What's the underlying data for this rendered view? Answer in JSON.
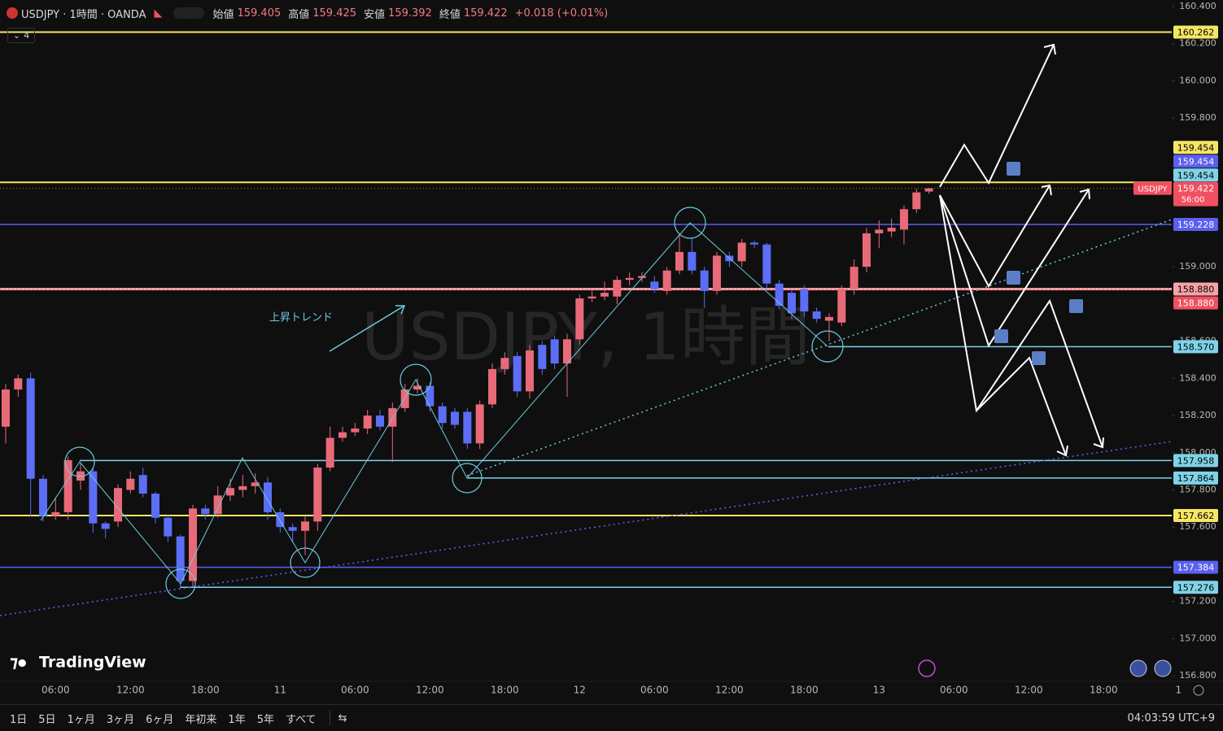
{
  "header": {
    "symbol_line": "USDJPY · 1時間 · OANDA",
    "indicator_count": "4",
    "ohlc": [
      {
        "label": "始値",
        "value": 159.405
      },
      {
        "label": "高値",
        "value": 159.425
      },
      {
        "label": "安値",
        "value": 159.392
      },
      {
        "label": "終値",
        "value": 159.422
      }
    ],
    "change": "+0.018 (+0.01%)"
  },
  "chart_data": {
    "type": "candlestick",
    "watermark": "USDJPY, 1時間",
    "annotation": "上昇トレンド",
    "brand": "TradingView",
    "up_color": "#e86a78",
    "down_color": "#5c6ef5",
    "categories": [
      null,
      null,
      null,
      null,
      "06:00",
      null,
      null,
      null,
      null,
      null,
      "12:00",
      null,
      null,
      null,
      null,
      null,
      "18:00",
      null,
      null,
      null,
      null,
      null,
      "11",
      null,
      null,
      null,
      null,
      null,
      "06:00",
      null,
      null,
      null,
      null,
      null,
      "12:00",
      null,
      null,
      null,
      null,
      null,
      "18:00",
      null,
      null,
      null,
      null,
      null,
      "12",
      null,
      null,
      null,
      null,
      null,
      "06:00",
      null,
      null,
      null,
      null,
      null,
      "12:00",
      null,
      null,
      null,
      null,
      null,
      "18:00",
      null,
      null,
      null,
      null,
      null,
      "13",
      null,
      null,
      null,
      null,
      null,
      "06:00",
      null,
      null,
      null,
      null,
      null,
      "12:00",
      null,
      null,
      null,
      null,
      null,
      "18:00",
      null,
      null,
      null,
      null,
      null,
      "1"
    ],
    "open": [
      158.14,
      158.34,
      158.4,
      157.86,
      157.66,
      157.68,
      157.85,
      157.9,
      157.62,
      157.63,
      157.8,
      157.88,
      157.78,
      157.65,
      157.55,
      157.31,
      157.7,
      157.67,
      157.77,
      157.8,
      157.82,
      157.84,
      157.68,
      157.6,
      157.58,
      157.63,
      157.92,
      158.08,
      158.11,
      158.13,
      158.2,
      158.14,
      158.24,
      158.34,
      158.36,
      158.25,
      158.22,
      158.22,
      158.05,
      158.26,
      158.45,
      158.52,
      158.33,
      158.58,
      158.61,
      158.48,
      158.61,
      158.83,
      158.84,
      158.84,
      158.93,
      158.94,
      158.92,
      158.87,
      158.98,
      159.08,
      158.98,
      158.87,
      159.06,
      159.03,
      159.13,
      159.12,
      158.91,
      158.86,
      158.88,
      158.76,
      158.71,
      158.7,
      158.88,
      159.0,
      159.18,
      159.19,
      159.2,
      159.31,
      159.405,
      null,
      null,
      null,
      null,
      null,
      null,
      null,
      null,
      null,
      null,
      null,
      null,
      null,
      null,
      null,
      null,
      null,
      null,
      null,
      null
    ],
    "high": [
      158.37,
      158.42,
      158.43,
      157.88,
      157.76,
      157.98,
      157.94,
      157.92,
      157.63,
      157.83,
      157.9,
      157.92,
      157.79,
      157.67,
      157.56,
      157.72,
      157.72,
      157.82,
      157.86,
      157.88,
      157.89,
      157.87,
      157.7,
      157.62,
      157.66,
      157.94,
      158.14,
      158.14,
      158.16,
      158.23,
      158.23,
      158.27,
      158.37,
      158.4,
      158.38,
      158.27,
      158.24,
      158.24,
      158.28,
      158.48,
      158.54,
      158.54,
      158.58,
      158.6,
      158.63,
      158.64,
      158.85,
      158.88,
      158.92,
      158.95,
      158.97,
      158.97,
      158.95,
      159.0,
      159.18,
      159.15,
      159.0,
      159.08,
      159.08,
      159.15,
      159.14,
      159.13,
      158.93,
      158.88,
      158.9,
      158.78,
      158.75,
      158.9,
      159.04,
      159.21,
      159.25,
      159.26,
      159.33,
      159.42,
      159.425,
      null,
      null,
      null,
      null,
      null,
      null,
      null,
      null,
      null,
      null,
      null,
      null,
      null,
      null,
      null,
      null,
      null,
      null,
      null,
      null
    ],
    "low": [
      158.05,
      158.3,
      157.66,
      157.63,
      157.64,
      157.64,
      157.8,
      157.57,
      157.54,
      157.6,
      157.78,
      157.76,
      157.62,
      157.52,
      157.27,
      157.28,
      157.64,
      157.65,
      157.74,
      157.76,
      157.78,
      157.64,
      157.57,
      157.52,
      157.45,
      157.58,
      157.9,
      158.06,
      158.09,
      158.1,
      158.12,
      157.95,
      158.22,
      158.32,
      158.22,
      158.13,
      158.13,
      158.02,
      158.02,
      158.24,
      158.42,
      158.3,
      158.29,
      158.42,
      158.45,
      158.3,
      158.58,
      158.81,
      158.82,
      158.8,
      158.9,
      158.92,
      158.86,
      158.85,
      158.96,
      158.96,
      158.78,
      158.85,
      159.0,
      159.0,
      159.1,
      158.88,
      158.77,
      158.72,
      158.73,
      158.7,
      158.6,
      158.68,
      158.85,
      158.97,
      159.1,
      159.16,
      159.12,
      159.29,
      159.392,
      null,
      null,
      null,
      null,
      null,
      null,
      null,
      null,
      null,
      null,
      null,
      null,
      null,
      null,
      null,
      null,
      null,
      null,
      null,
      null
    ],
    "close": [
      158.34,
      158.4,
      157.86,
      157.66,
      157.68,
      157.96,
      157.9,
      157.62,
      157.59,
      157.81,
      157.86,
      157.78,
      157.65,
      157.55,
      157.31,
      157.7,
      157.67,
      157.77,
      157.81,
      157.82,
      157.84,
      157.68,
      157.6,
      157.58,
      157.63,
      157.92,
      158.08,
      158.11,
      158.13,
      158.2,
      158.14,
      158.24,
      158.34,
      158.36,
      158.25,
      158.16,
      158.15,
      158.05,
      158.26,
      158.45,
      158.51,
      158.33,
      158.55,
      158.45,
      158.48,
      158.61,
      158.83,
      158.84,
      158.86,
      158.93,
      158.94,
      158.95,
      158.88,
      158.98,
      159.08,
      158.98,
      158.87,
      159.06,
      159.03,
      159.13,
      159.12,
      158.91,
      158.79,
      158.75,
      158.76,
      158.72,
      158.73,
      158.88,
      159.0,
      159.18,
      159.2,
      159.21,
      159.31,
      159.4,
      159.422,
      null,
      null,
      null,
      null,
      null,
      null,
      null,
      null,
      null,
      null,
      null,
      null,
      null,
      null,
      null,
      null,
      null,
      null,
      null,
      null
    ],
    "ylim": [
      156.77,
      160.435
    ],
    "yticks": [
      {
        "value": 160.4,
        "label": "160.400"
      },
      {
        "value": 160.2,
        "label": "160.200"
      },
      {
        "value": 160.0,
        "label": "160.000"
      },
      {
        "value": 159.8,
        "label": "159.800"
      },
      {
        "value": 159.0,
        "label": "159.000"
      },
      {
        "value": 158.6,
        "label": "158.600"
      },
      {
        "value": 158.4,
        "label": "158.400"
      },
      {
        "value": 158.2,
        "label": "158.200"
      },
      {
        "value": 158.0,
        "label": "158.000"
      },
      {
        "value": 157.8,
        "label": "157.800"
      },
      {
        "value": 157.6,
        "label": "157.600"
      },
      {
        "value": 157.2,
        "label": "157.200"
      },
      {
        "value": 157.0,
        "label": "157.000"
      },
      {
        "value": 156.8,
        "label": "156.800"
      }
    ],
    "levels": [
      {
        "value": 160.262,
        "color": "#f5e663",
        "style": "solid"
      },
      {
        "value": 159.454,
        "color": "#5b5ff0",
        "style": "solid"
      },
      {
        "value": 159.454,
        "color": "#7fd3e8",
        "style": "solid"
      },
      {
        "value": 159.454,
        "color": "#f5e663",
        "style": "solid"
      },
      {
        "value": 159.228,
        "color": "#5b5ff0",
        "style": "solid"
      },
      {
        "value": 158.88,
        "label": "158.880",
        "color": "#f7a1a8",
        "style": "solid"
      },
      {
        "value": 158.88,
        "label": "158.880",
        "color": "#f05060",
        "style": "dotted"
      },
      {
        "value": 158.57,
        "label": "158.570",
        "color": "#7fd3e8",
        "style": "solid"
      },
      {
        "value": 157.958,
        "color": "#7fd3e8",
        "style": "solid"
      },
      {
        "value": 157.864,
        "color": "#7fd3e8",
        "style": "solid"
      },
      {
        "value": 157.662,
        "color": "#f5e663",
        "style": "solid"
      },
      {
        "value": 157.384,
        "color": "#5b5ff0",
        "style": "solid"
      },
      {
        "value": 157.276,
        "color": "#7fd3e8",
        "style": "solid"
      }
    ],
    "last_price": {
      "symbol": "USDJPY",
      "countdown": "56:00",
      "color": "#f05060"
    }
  },
  "footer": {
    "periods": [
      "1日",
      "5日",
      "1ヶ月",
      "3ヶ月",
      "6ヶ月",
      "年初来",
      "1年",
      "5年",
      "すべて"
    ],
    "time": "04:03:59 UTC+9"
  }
}
